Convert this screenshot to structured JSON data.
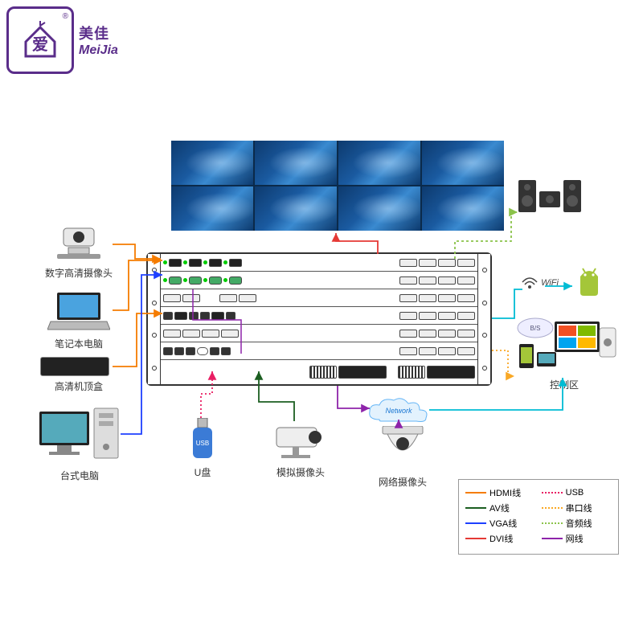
{
  "logo": {
    "cn": "美佳",
    "en": "MeiJia",
    "char": "爱",
    "reg": "®"
  },
  "devices": {
    "cam_digital": "数字高清摄像头",
    "laptop": "笔记本电脑",
    "stb": "高清机顶盒",
    "desktop": "台式电脑",
    "usb": "U盘",
    "cam_analog": "模拟摄像头",
    "cam_net": "网络摄像头",
    "control": "控制区"
  },
  "network_label": "Network",
  "wifi": "WiFi",
  "bs": "B/S",
  "legend": {
    "items": [
      {
        "label": "HDMI线",
        "color": "#f57c00",
        "style": "solid"
      },
      {
        "label": "USB",
        "color": "#e91e63",
        "style": "dotted"
      },
      {
        "label": "AV线",
        "color": "#1b5e20",
        "style": "solid"
      },
      {
        "label": "串口线",
        "color": "#f9a825",
        "style": "dotted"
      },
      {
        "label": "VGA线",
        "color": "#1e40ff",
        "style": "solid"
      },
      {
        "label": "音频线",
        "color": "#8bc34a",
        "style": "dotted"
      },
      {
        "label": "DVI线",
        "color": "#e53935",
        "style": "solid"
      },
      {
        "label": "网线",
        "color": "#8e24aa",
        "style": "solid"
      }
    ]
  },
  "colors": {
    "hdmi": "#f57c00",
    "av": "#1b5e20",
    "vga": "#1e40ff",
    "dvi": "#e53935",
    "usb": "#e91e63",
    "serial": "#f9a825",
    "audio": "#8bc34a",
    "net": "#8e24aa",
    "cyan": "#00bcd4",
    "logo": "#5a2d8a"
  }
}
